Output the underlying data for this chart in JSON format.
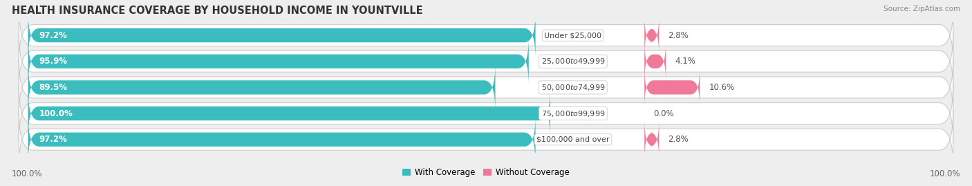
{
  "title": "HEALTH INSURANCE COVERAGE BY HOUSEHOLD INCOME IN YOUNTVILLE",
  "source": "Source: ZipAtlas.com",
  "categories": [
    "Under $25,000",
    "$25,000 to $49,999",
    "$50,000 to $74,999",
    "$75,000 to $99,999",
    "$100,000 and over"
  ],
  "with_coverage": [
    97.2,
    95.9,
    89.5,
    100.0,
    97.2
  ],
  "without_coverage": [
    2.8,
    4.1,
    10.6,
    0.0,
    2.8
  ],
  "color_with": "#3bbcbf",
  "color_without": "#f07898",
  "bg_color": "#eeeeee",
  "bar_bg": "white",
  "left_label": "100.0%",
  "right_label": "100.0%",
  "legend_with": "With Coverage",
  "legend_without": "Without Coverage",
  "title_fontsize": 10.5,
  "label_fontsize": 8.5,
  "tick_fontsize": 8.5,
  "source_fontsize": 7.5
}
